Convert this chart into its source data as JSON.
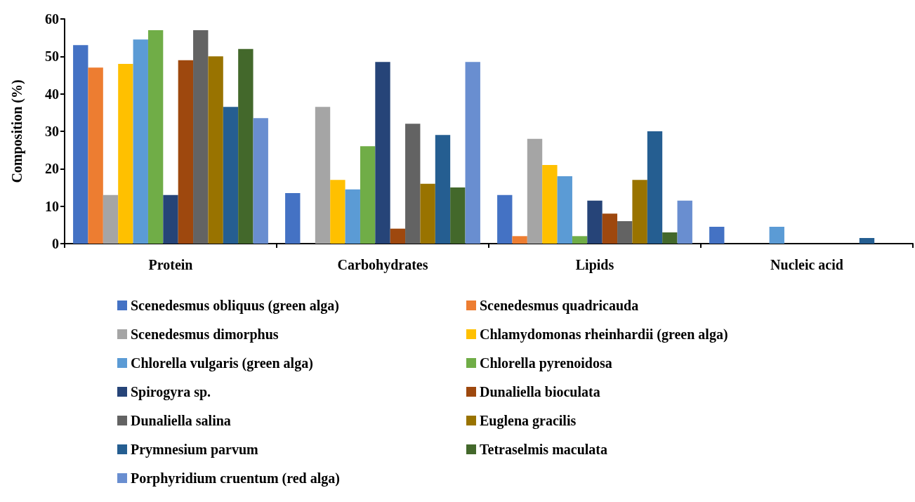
{
  "chart_data": {
    "type": "bar",
    "ylabel": "Composition (%)",
    "categories": [
      "Protein",
      "Carbohydrates",
      "Lipids",
      "Nucleic acid"
    ],
    "ylim": [
      0,
      60
    ],
    "yticks": [
      0,
      10,
      20,
      30,
      40,
      50,
      60
    ],
    "grid": false,
    "legend": "bottom",
    "series": [
      {
        "name": "Scenedesmus obliquus (green alga)",
        "color": "#4472c4",
        "values": [
          53,
          13.5,
          13,
          4.5
        ]
      },
      {
        "name": "Scenedesmus quadricauda",
        "color": "#ed7d31",
        "values": [
          47,
          null,
          2,
          null
        ]
      },
      {
        "name": "Scenedesmus dimorphus",
        "color": "#a5a5a5",
        "values": [
          13,
          36.5,
          28,
          null
        ]
      },
      {
        "name": "Chlamydomonas rheinhardii (green alga)",
        "color": "#ffc000",
        "values": [
          48,
          17,
          21,
          null
        ]
      },
      {
        "name": "Chlorella vulgaris (green alga)",
        "color": "#5b9bd5",
        "values": [
          54.5,
          14.5,
          18,
          4.5
        ]
      },
      {
        "name": "Chlorella pyrenoidosa",
        "color": "#70ad47",
        "values": [
          57,
          26,
          2,
          null
        ]
      },
      {
        "name": "Spirogyra sp.",
        "color": "#264478",
        "values": [
          13,
          48.5,
          11.5,
          null
        ]
      },
      {
        "name": "Dunaliella bioculata",
        "color": "#9e480e",
        "values": [
          49,
          4,
          8,
          null
        ]
      },
      {
        "name": "Dunaliella salina",
        "color": "#636363",
        "values": [
          57,
          32,
          6,
          null
        ]
      },
      {
        "name": "Euglena gracilis",
        "color": "#997300",
        "values": [
          50,
          16,
          17,
          null
        ]
      },
      {
        "name": "Prymnesium parvum",
        "color": "#255e91",
        "values": [
          36.5,
          29,
          30,
          1.5
        ]
      },
      {
        "name": "Tetraselmis maculata",
        "color": "#43682b",
        "values": [
          52,
          15,
          3,
          null
        ]
      },
      {
        "name": "Porphyridium cruentum (red alga)",
        "color": "#698ed0",
        "values": [
          33.5,
          48.5,
          11.5,
          null
        ]
      }
    ]
  }
}
